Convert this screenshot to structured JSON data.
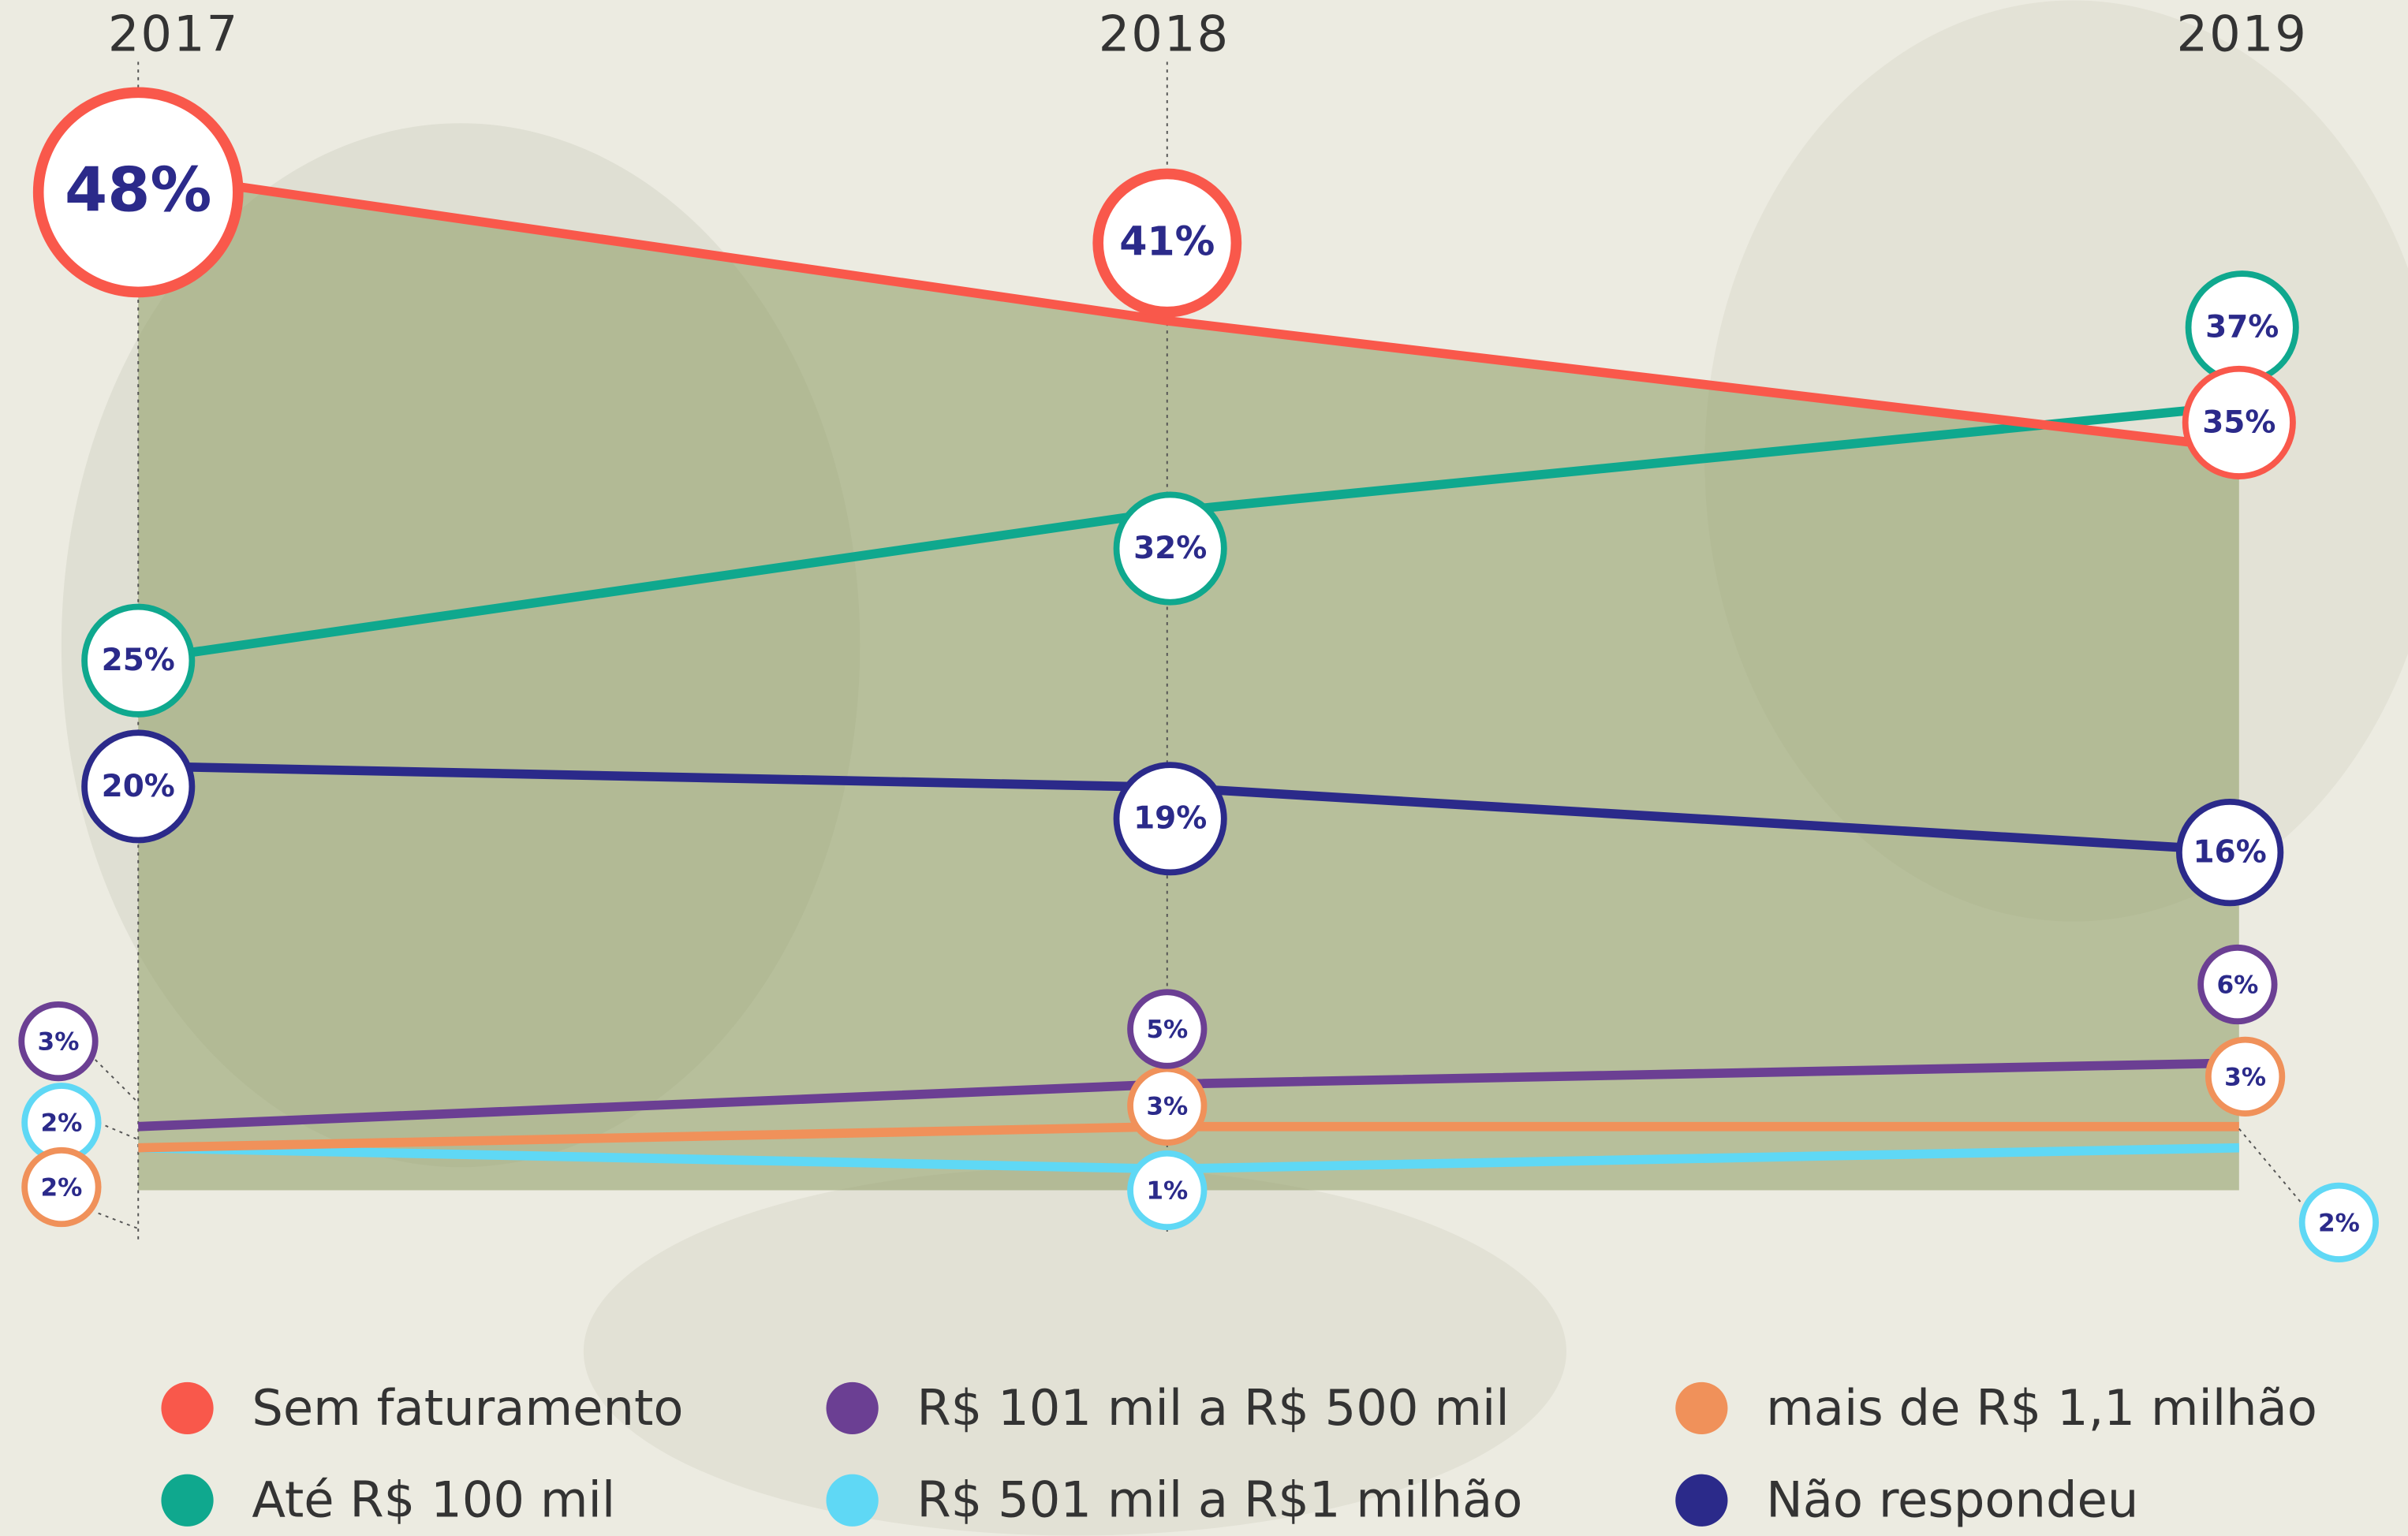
{
  "chart_data": {
    "type": "line",
    "categories": [
      "2017",
      "2018",
      "2019"
    ],
    "series": [
      {
        "name": "Sem faturamento",
        "color": "#f9584b",
        "values": [
          48,
          41,
          35
        ],
        "value_labels": [
          "48%",
          "41%",
          "35%"
        ]
      },
      {
        "name": "Até R$ 100 mil",
        "color": "#0fa88e",
        "values": [
          25,
          32,
          37
        ],
        "value_labels": [
          "25%",
          "32%",
          "37%"
        ]
      },
      {
        "name": "R$ 101 mil a R$ 500 mil",
        "color": "#6b3f93",
        "values": [
          3,
          5,
          6
        ],
        "value_labels": [
          "3%",
          "5%",
          "6%"
        ]
      },
      {
        "name": "R$ 501 mil a R$1 milhão",
        "color": "#5fd8f5",
        "values": [
          2,
          1,
          2
        ],
        "value_labels": [
          "2%",
          "1%",
          "2%"
        ]
      },
      {
        "name": "mais de R$ 1,1 milhão",
        "color": "#f0915a",
        "values": [
          2,
          3,
          3
        ],
        "value_labels": [
          "2%",
          "3%",
          "3%"
        ]
      },
      {
        "name": "Não respondeu",
        "color": "#2b2a8a",
        "values": [
          20,
          19,
          16
        ],
        "value_labels": [
          "20%",
          "19%",
          "16%"
        ]
      }
    ]
  }
}
